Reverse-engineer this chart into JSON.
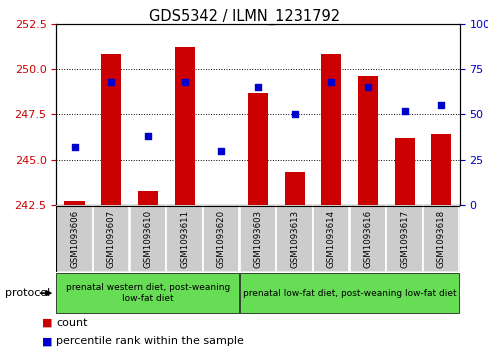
{
  "title": "GDS5342 / ILMN_1231792",
  "samples": [
    "GSM1093606",
    "GSM1093607",
    "GSM1093610",
    "GSM1093611",
    "GSM1093620",
    "GSM1093603",
    "GSM1093613",
    "GSM1093614",
    "GSM1093616",
    "GSM1093617",
    "GSM1093618"
  ],
  "counts": [
    242.7,
    250.8,
    243.3,
    251.2,
    242.5,
    248.7,
    244.3,
    250.8,
    249.6,
    246.2,
    246.4
  ],
  "percentiles": [
    32,
    68,
    38,
    68,
    30,
    65,
    50,
    68,
    65,
    52,
    55
  ],
  "ylim_left": [
    242.5,
    252.5
  ],
  "ylim_right": [
    0,
    100
  ],
  "yticks_left": [
    242.5,
    245.0,
    247.5,
    250.0,
    252.5
  ],
  "yticks_right": [
    0,
    25,
    50,
    75,
    100
  ],
  "bar_color": "#cc0000",
  "dot_color": "#0000cc",
  "bar_baseline": 242.5,
  "group1_label": "prenatal western diet, post-weaning\nlow-fat diet",
  "group2_label": "prenatal low-fat diet, post-weaning low-fat diet",
  "group1_indices": [
    0,
    1,
    2,
    3,
    4
  ],
  "group2_indices": [
    5,
    6,
    7,
    8,
    9,
    10
  ],
  "group_color": "#66dd55",
  "sample_box_color": "#cccccc",
  "tick_label_color_left": "#cc0000",
  "tick_label_color_right": "#0000cc",
  "legend_count_label": "count",
  "legend_pct_label": "percentile rank within the sample",
  "protocol_label": "protocol"
}
